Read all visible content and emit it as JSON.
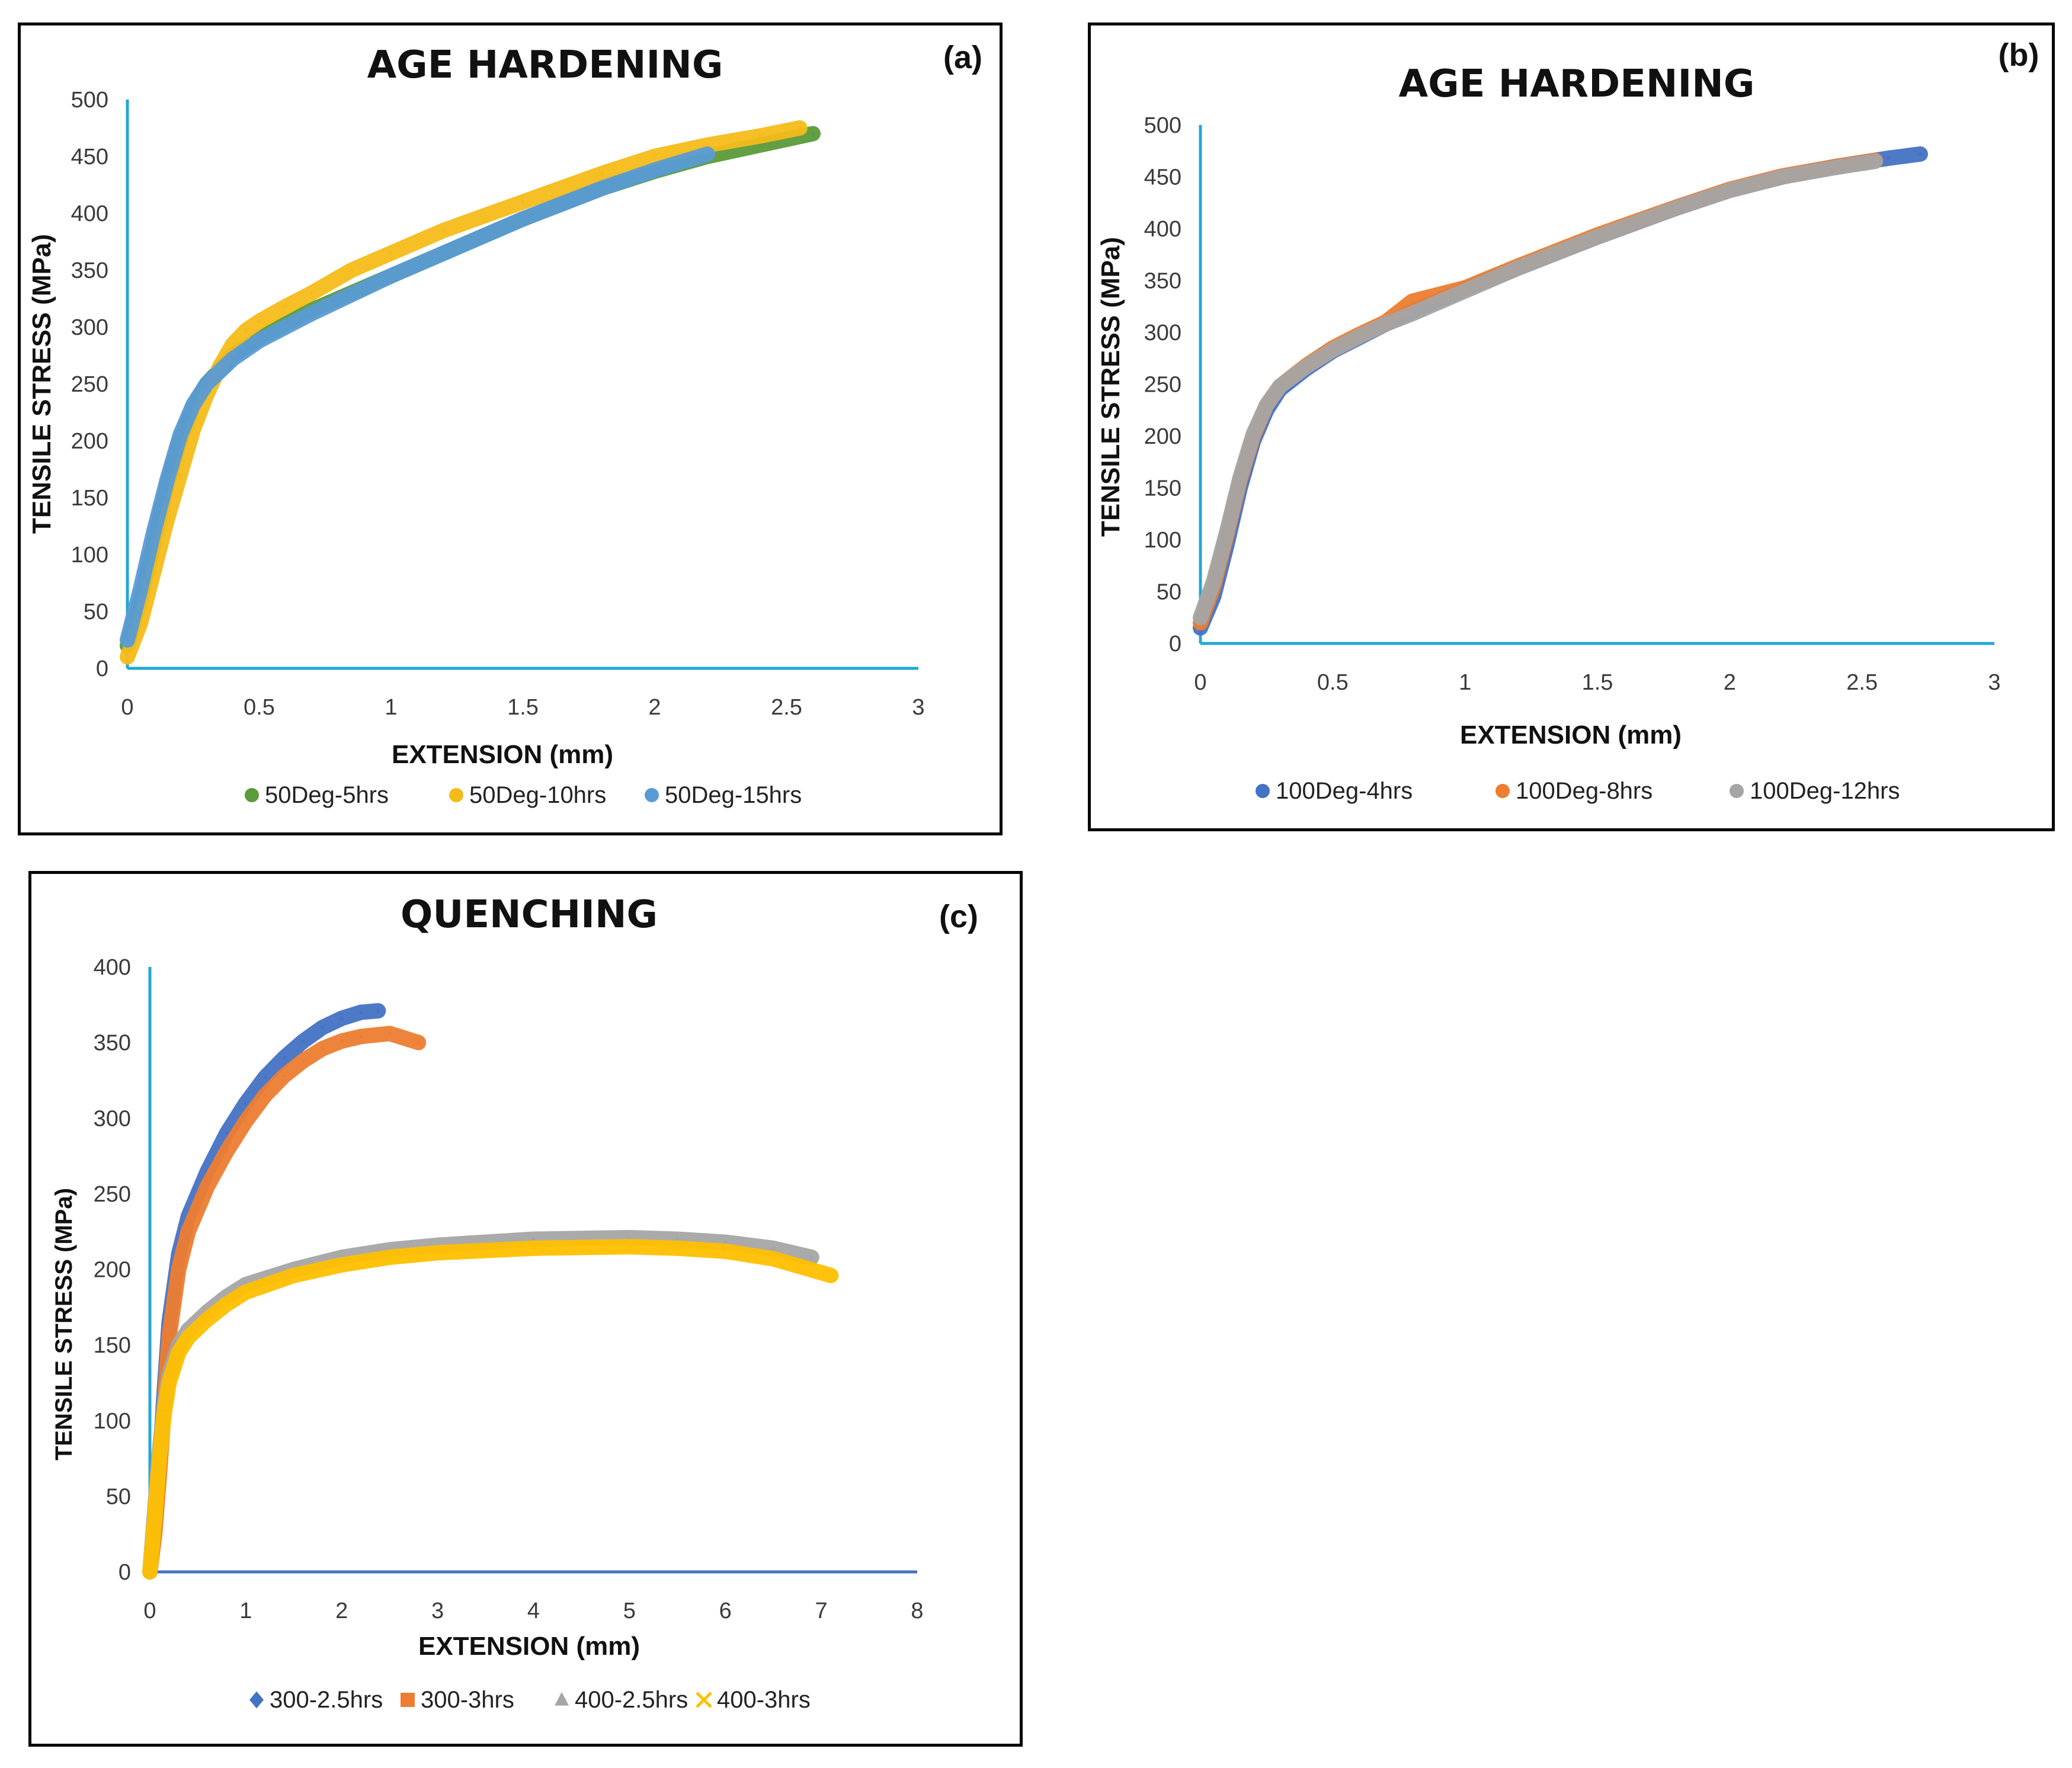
{
  "chart_data": [
    {
      "type": "line",
      "panel_label": "(a)",
      "title": "AGE HARDENING",
      "xlabel": "EXTENSION (mm)",
      "ylabel": "TENSILE STRESS (MPa)",
      "xlim": [
        0,
        3
      ],
      "ylim": [
        0,
        500
      ],
      "xticks": [
        0,
        0.5,
        1,
        1.5,
        2,
        2.5,
        3
      ],
      "xtick_labels": [
        "0",
        "0.5",
        "1",
        "1.5",
        "2",
        "2.5",
        "3"
      ],
      "yticks": [
        0,
        50,
        100,
        150,
        200,
        250,
        300,
        350,
        400,
        450,
        500
      ],
      "ytick_labels": [
        "0",
        "50",
        "100",
        "150",
        "200",
        "250",
        "300",
        "350",
        "400",
        "450",
        "500"
      ],
      "legend_position": "bottom",
      "series": [
        {
          "name": "50Deg-5hrs",
          "color": "#5B9B3A",
          "marker": "circle",
          "x": [
            0,
            0.05,
            0.1,
            0.15,
            0.2,
            0.25,
            0.3,
            0.4,
            0.5,
            0.7,
            0.9,
            1.2,
            1.5,
            1.8,
            2.0,
            2.2,
            2.4,
            2.6
          ],
          "y": [
            20,
            60,
            110,
            160,
            200,
            230,
            250,
            275,
            290,
            315,
            335,
            365,
            395,
            422,
            437,
            450,
            460,
            470
          ]
        },
        {
          "name": "50Deg-10hrs",
          "color": "#F4BC19",
          "marker": "circle",
          "x": [
            0,
            0.05,
            0.1,
            0.15,
            0.2,
            0.25,
            0.3,
            0.35,
            0.4,
            0.45,
            0.5,
            0.6,
            0.7,
            0.85,
            1.0,
            1.2,
            1.5,
            1.8,
            2.0,
            2.2,
            2.4,
            2.55
          ],
          "y": [
            10,
            40,
            85,
            130,
            170,
            210,
            240,
            265,
            285,
            297,
            305,
            318,
            330,
            350,
            365,
            385,
            410,
            435,
            450,
            460,
            468,
            475
          ]
        },
        {
          "name": "50Deg-15hrs",
          "color": "#5A9BD5",
          "marker": "circle",
          "x": [
            0,
            0.05,
            0.1,
            0.15,
            0.2,
            0.25,
            0.3,
            0.4,
            0.5,
            0.6,
            0.7,
            0.8,
            1.0,
            1.2,
            1.5,
            1.8,
            2.0,
            2.2
          ],
          "y": [
            25,
            70,
            120,
            165,
            205,
            232,
            250,
            272,
            288,
            300,
            312,
            323,
            345,
            365,
            395,
            422,
            438,
            452
          ]
        }
      ]
    },
    {
      "type": "line",
      "panel_label": "(b)",
      "title": "AGE HARDENING",
      "xlabel": "EXTENSION (mm)",
      "ylabel": "TENSILE STRESS (MPa)",
      "xlim": [
        0,
        3
      ],
      "ylim": [
        0,
        500
      ],
      "xticks": [
        0,
        0.5,
        1,
        1.5,
        2,
        2.5,
        3
      ],
      "xtick_labels": [
        "0",
        "0.5",
        "1",
        "1.5",
        "2",
        "2.5",
        "3"
      ],
      "yticks": [
        0,
        50,
        100,
        150,
        200,
        250,
        300,
        350,
        400,
        450,
        500
      ],
      "ytick_labels": [
        "0",
        "50",
        "100",
        "150",
        "200",
        "250",
        "300",
        "350",
        "400",
        "450",
        "500"
      ],
      "legend_position": "bottom",
      "series": [
        {
          "name": "100Deg-4hrs",
          "color": "#4472C4",
          "marker": "circle",
          "x": [
            0,
            0.05,
            0.1,
            0.15,
            0.2,
            0.25,
            0.3,
            0.4,
            0.5,
            0.6,
            0.7,
            0.8,
            1.0,
            1.2,
            1.5,
            1.8,
            2.0,
            2.2,
            2.4,
            2.6,
            2.72
          ],
          "y": [
            15,
            45,
            95,
            150,
            195,
            225,
            245,
            265,
            282,
            295,
            308,
            320,
            342,
            362,
            392,
            420,
            437,
            450,
            460,
            468,
            472
          ]
        },
        {
          "name": "100Deg-8hrs",
          "color": "#ED7D31",
          "marker": "circle",
          "x": [
            0,
            0.05,
            0.1,
            0.15,
            0.2,
            0.25,
            0.3,
            0.4,
            0.5,
            0.6,
            0.7,
            0.8,
            1.0,
            1.2,
            1.5,
            1.8,
            2.0,
            2.2,
            2.4,
            2.55
          ],
          "y": [
            20,
            55,
            105,
            158,
            200,
            230,
            248,
            268,
            285,
            298,
            310,
            330,
            343,
            364,
            394,
            421,
            438,
            451,
            460,
            466
          ]
        },
        {
          "name": "100Deg-12hrs",
          "color": "#A5A5A5",
          "marker": "circle",
          "x": [
            0,
            0.05,
            0.1,
            0.15,
            0.2,
            0.25,
            0.3,
            0.4,
            0.5,
            0.6,
            0.7,
            0.8,
            1.0,
            1.2,
            1.5,
            1.8,
            2.0,
            2.2,
            2.4,
            2.55
          ],
          "y": [
            25,
            60,
            108,
            160,
            202,
            230,
            248,
            267,
            283,
            296,
            308,
            318,
            340,
            362,
            392,
            420,
            437,
            450,
            459,
            465
          ]
        }
      ]
    },
    {
      "type": "line",
      "panel_label": "(c)",
      "title": "QUENCHING",
      "xlabel": "EXTENSION (mm)",
      "ylabel": "TENSILE STRESS (MPa)",
      "xlim": [
        0,
        8
      ],
      "ylim": [
        0,
        400
      ],
      "xticks": [
        0,
        1,
        2,
        3,
        4,
        5,
        6,
        7,
        8
      ],
      "xtick_labels": [
        "0",
        "1",
        "2",
        "3",
        "4",
        "5",
        "6",
        "7",
        "8"
      ],
      "yticks": [
        0,
        50,
        100,
        150,
        200,
        250,
        300,
        350,
        400
      ],
      "ytick_labels": [
        "0",
        "50",
        "100",
        "150",
        "200",
        "250",
        "300",
        "350",
        "400"
      ],
      "legend_position": "bottom",
      "series": [
        {
          "name": "300-2.5hrs",
          "color": "#4472C4",
          "marker": "diamond",
          "x": [
            0,
            0.05,
            0.1,
            0.15,
            0.2,
            0.3,
            0.4,
            0.6,
            0.8,
            1.0,
            1.2,
            1.4,
            1.6,
            1.8,
            2.0,
            2.2,
            2.38
          ],
          "y": [
            0,
            30,
            70,
            120,
            165,
            210,
            235,
            265,
            290,
            310,
            327,
            340,
            351,
            360,
            366,
            370,
            371
          ]
        },
        {
          "name": "300-3hrs",
          "color": "#ED7D31",
          "marker": "square",
          "x": [
            0,
            0.05,
            0.1,
            0.15,
            0.2,
            0.3,
            0.4,
            0.6,
            0.8,
            1.0,
            1.2,
            1.4,
            1.6,
            1.8,
            2.0,
            2.2,
            2.5,
            2.8
          ],
          "y": [
            0,
            25,
            65,
            110,
            155,
            200,
            225,
            255,
            278,
            298,
            315,
            328,
            338,
            346,
            351,
            354,
            356,
            350
          ]
        },
        {
          "name": "400-2.5hrs",
          "color": "#A5A5A5",
          "marker": "triangle",
          "x": [
            0,
            0.05,
            0.1,
            0.15,
            0.2,
            0.3,
            0.4,
            0.6,
            0.8,
            1.0,
            1.5,
            2.0,
            2.5,
            3.0,
            4.0,
            5.0,
            5.5,
            6.0,
            6.5,
            6.9
          ],
          "y": [
            0,
            40,
            80,
            110,
            130,
            150,
            160,
            172,
            182,
            190,
            200,
            208,
            213,
            216,
            220,
            221,
            220,
            218,
            214,
            208
          ]
        },
        {
          "name": "400-3hrs",
          "color": "#FFC000",
          "marker": "x",
          "x": [
            0,
            0.05,
            0.1,
            0.15,
            0.2,
            0.3,
            0.4,
            0.6,
            0.8,
            1.0,
            1.5,
            2.0,
            2.5,
            3.0,
            4.0,
            5.0,
            5.5,
            6.0,
            6.5,
            7.1
          ],
          "y": [
            0,
            35,
            75,
            105,
            125,
            145,
            155,
            167,
            177,
            185,
            196,
            203,
            208,
            211,
            214,
            215,
            214,
            212,
            207,
            196
          ]
        }
      ]
    }
  ]
}
